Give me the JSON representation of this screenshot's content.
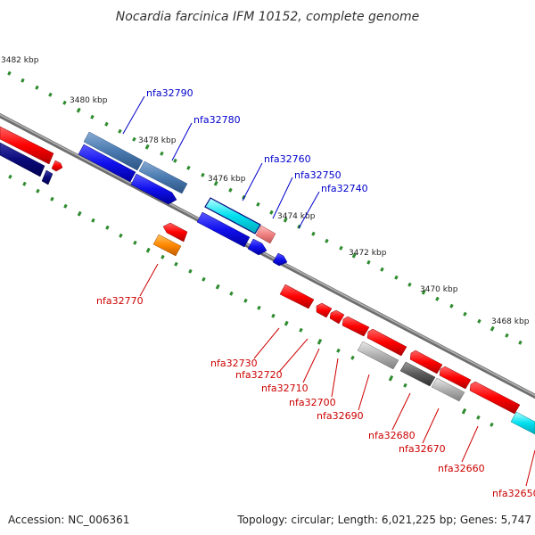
{
  "title": "Nocardia farcinica IFM 10152, complete genome",
  "footer": {
    "accession": "Accession: NC_006361",
    "summary": "Topology: circular; Length: 6,021,225 bp; Genes: 5,747"
  },
  "scale_labels": [
    "3482 kbp",
    "3480 kbp",
    "3478 kbp",
    "3476 kbp",
    "3474 kbp",
    "3472 kbp",
    "3470 kbp",
    "3468 kbp"
  ],
  "upper_genes": [
    "nfa32790",
    "nfa32780",
    "nfa32760",
    "nfa32750",
    "nfa32740"
  ],
  "lower_genes": [
    "nfa32770",
    "nfa32730",
    "nfa32720",
    "nfa32710",
    "nfa32700",
    "nfa32690",
    "nfa32680",
    "nfa32670",
    "nfa32660",
    "nfa32650"
  ],
  "colors": {
    "strand_red": "#ff0000",
    "navy": "#0a0a7a",
    "blue": "#1010ee",
    "steel_blue": "#4a7ab0",
    "cyan": "#00d8e8",
    "orange": "#ff8800",
    "pink": "#f08080",
    "gray": "#a8a8a8",
    "dark_gray": "#5a5a5a",
    "tick_green": "#2e8b2e",
    "backbone": "#808080"
  }
}
